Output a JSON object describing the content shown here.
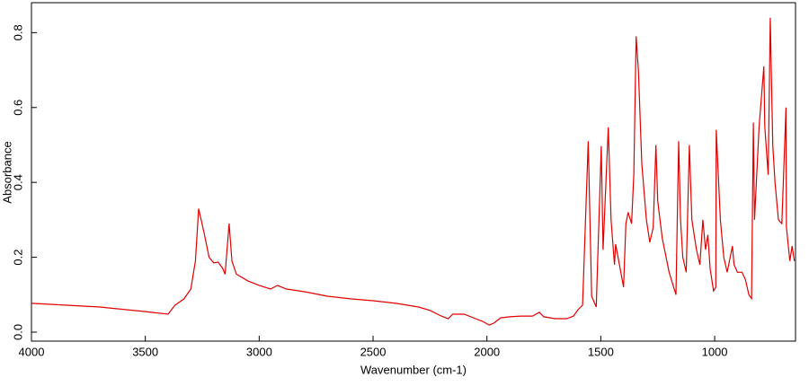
{
  "chart_data": {
    "type": "line",
    "xlabel": "Wavenumber (cm-1)",
    "ylabel": "Absorbance",
    "x": [
      4000,
      3700,
      3500,
      3400,
      3370,
      3330,
      3300,
      3280,
      3266,
      3240,
      3220,
      3200,
      3180,
      3160,
      3150,
      3132,
      3120,
      3100,
      3050,
      3000,
      2950,
      2920,
      2880,
      2800,
      2700,
      2600,
      2500,
      2400,
      2300,
      2250,
      2200,
      2170,
      2150,
      2100,
      2050,
      2020,
      1990,
      1970,
      1940,
      1900,
      1850,
      1800,
      1770,
      1750,
      1700,
      1650,
      1620,
      1600,
      1580,
      1555,
      1540,
      1520,
      1498,
      1490,
      1467,
      1455,
      1440,
      1435,
      1400,
      1390,
      1380,
      1365,
      1355,
      1345,
      1335,
      1320,
      1300,
      1285,
      1270,
      1258,
      1250,
      1230,
      1200,
      1170,
      1158,
      1150,
      1140,
      1125,
      1111,
      1100,
      1080,
      1065,
      1052,
      1040,
      1030,
      1020,
      1005,
      995,
      993,
      975,
      960,
      945,
      922,
      915,
      900,
      880,
      865,
      850,
      838,
      830,
      825,
      805,
      784,
      780,
      765,
      756,
      745,
      735,
      720,
      705,
      687,
      685,
      670,
      660,
      650
    ],
    "values": [
      0.077,
      0.067,
      0.055,
      0.048,
      0.072,
      0.089,
      0.115,
      0.19,
      0.33,
      0.26,
      0.2,
      0.185,
      0.187,
      0.17,
      0.155,
      0.29,
      0.19,
      0.155,
      0.137,
      0.125,
      0.115,
      0.125,
      0.115,
      0.108,
      0.096,
      0.089,
      0.084,
      0.077,
      0.067,
      0.058,
      0.043,
      0.036,
      0.048,
      0.048,
      0.036,
      0.029,
      0.019,
      0.024,
      0.038,
      0.041,
      0.043,
      0.043,
      0.053,
      0.041,
      0.036,
      0.036,
      0.043,
      0.06,
      0.072,
      0.51,
      0.096,
      0.067,
      0.497,
      0.22,
      0.547,
      0.3,
      0.18,
      0.235,
      0.12,
      0.29,
      0.32,
      0.29,
      0.42,
      0.79,
      0.7,
      0.45,
      0.3,
      0.24,
      0.28,
      0.5,
      0.35,
      0.25,
      0.16,
      0.1,
      0.51,
      0.3,
      0.2,
      0.16,
      0.5,
      0.3,
      0.22,
      0.18,
      0.3,
      0.22,
      0.26,
      0.17,
      0.11,
      0.12,
      0.54,
      0.3,
      0.2,
      0.16,
      0.23,
      0.18,
      0.16,
      0.16,
      0.14,
      0.1,
      0.09,
      0.56,
      0.3,
      0.55,
      0.71,
      0.55,
      0.42,
      0.84,
      0.5,
      0.4,
      0.3,
      0.29,
      0.6,
      0.28,
      0.19,
      0.23,
      0.19
    ],
    "color": "#e00000",
    "xlim": [
      4000,
      645
    ],
    "xticks": [
      4000,
      3500,
      3000,
      2500,
      2000,
      1500,
      1000
    ],
    "ylim": [
      -0.024,
      0.88
    ],
    "yticks": [
      {
        "value": 0,
        "label": "0.0"
      },
      0.2,
      0.4,
      0.6,
      0.8
    ]
  }
}
